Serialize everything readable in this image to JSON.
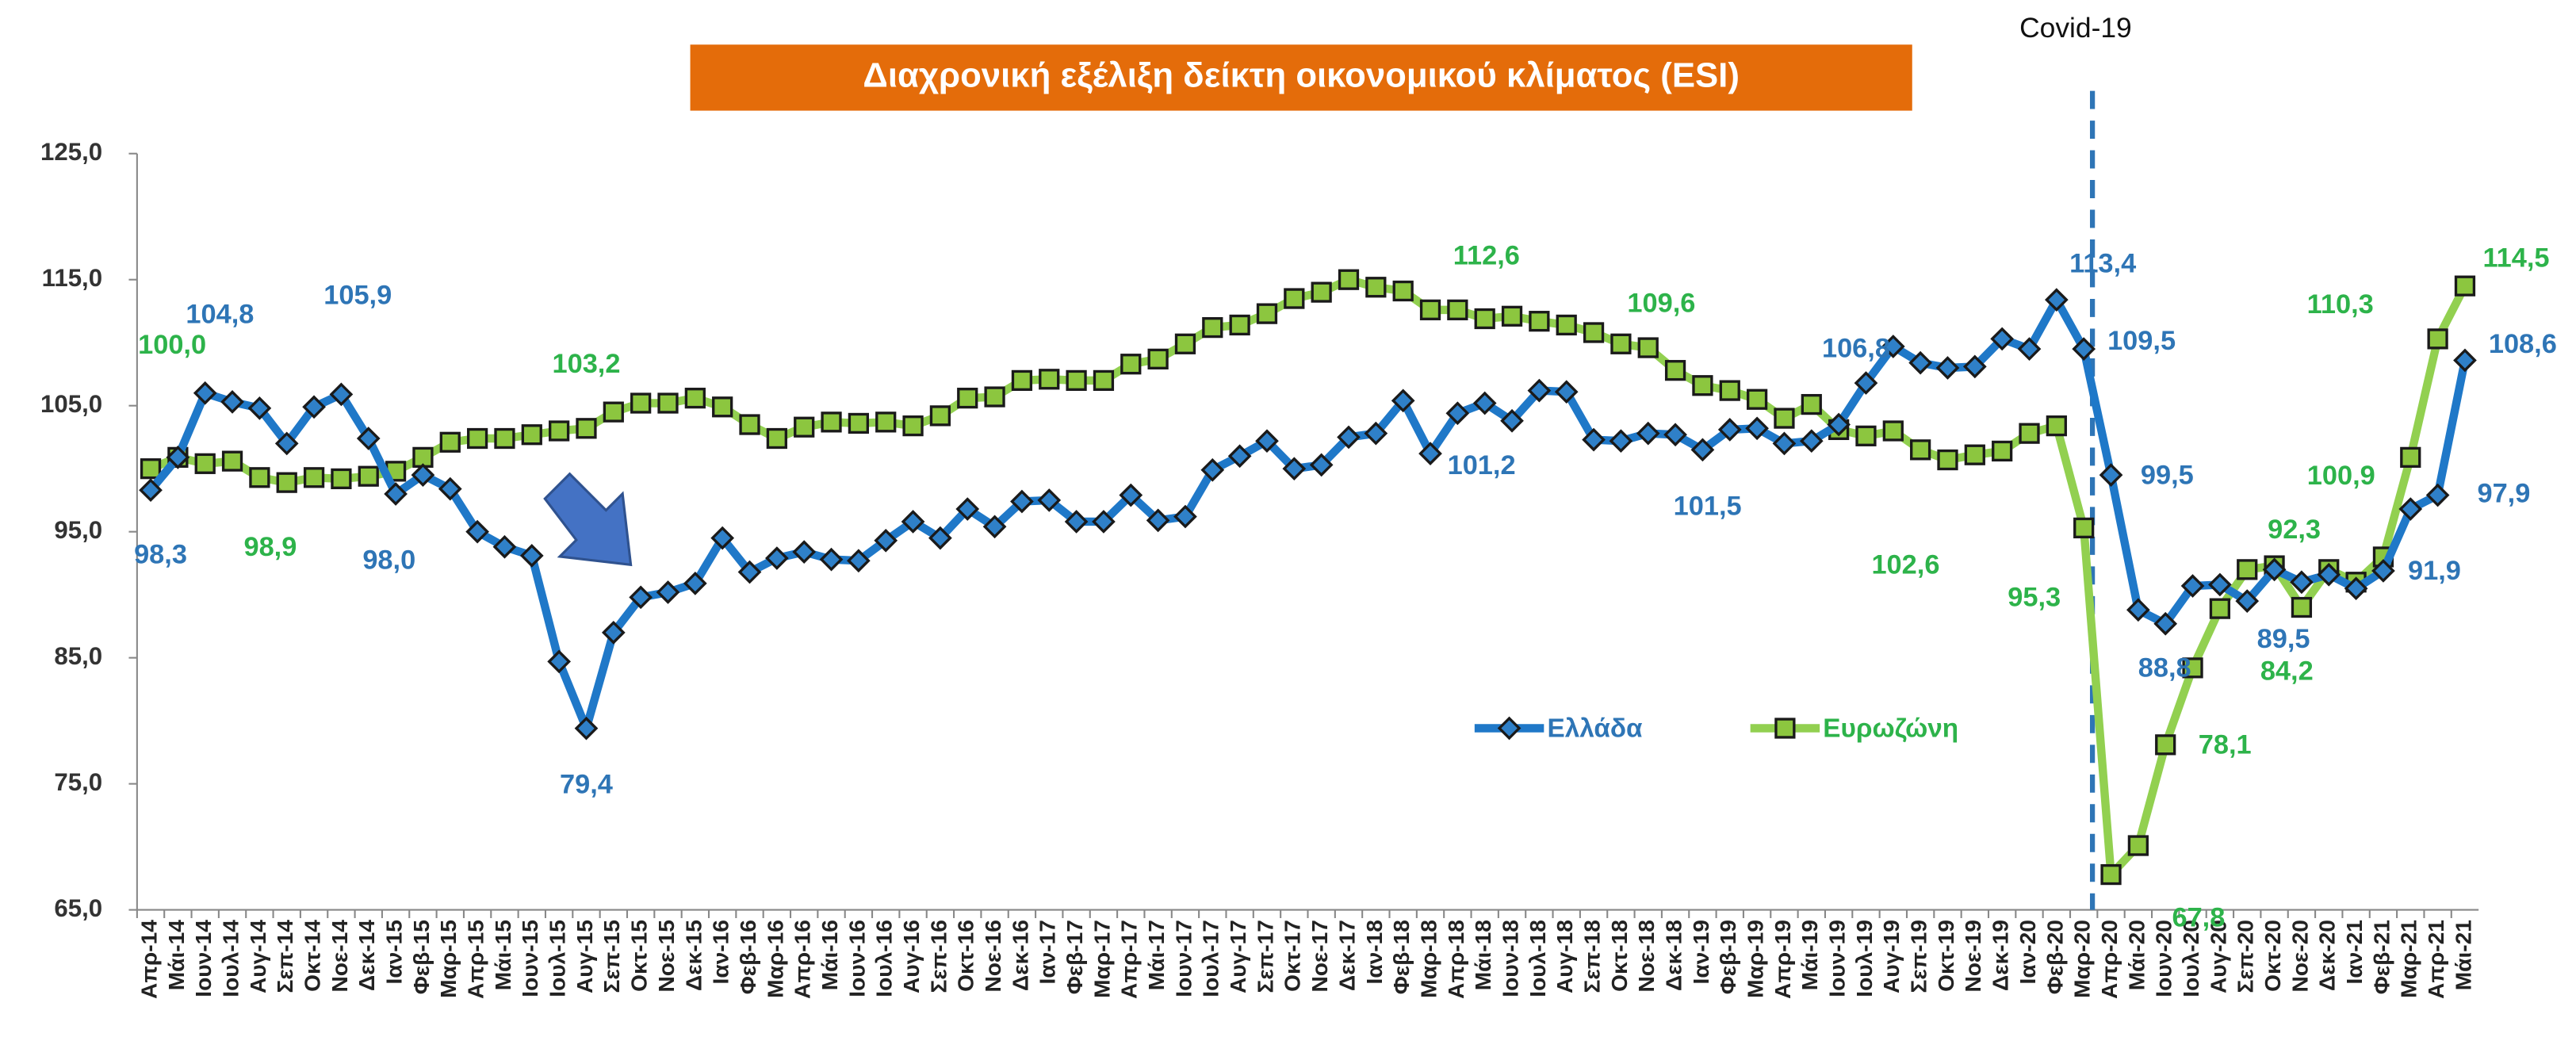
{
  "chart_data": {
    "type": "line",
    "title": "Διαχρονική εξέλιξη δείκτη οικονομικού κλίματος (ESI)",
    "annotations": [
      {
        "text": "Covid-19"
      }
    ],
    "categories": [
      "Απρ-14",
      "Μάι-14",
      "Ιουν-14",
      "Ιουλ-14",
      "Αυγ-14",
      "Σεπ-14",
      "Οκτ-14",
      "Νοε-14",
      "Δεκ-14",
      "Ιαν-15",
      "Φεβ-15",
      "Μαρ-15",
      "Απρ-15",
      "Μάι-15",
      "Ιουν-15",
      "Ιουλ-15",
      "Αυγ-15",
      "Σεπ-15",
      "Οκτ-15",
      "Νοε-15",
      "Δεκ-15",
      "Ιαν-16",
      "Φεβ-16",
      "Μαρ-16",
      "Απρ-16",
      "Μάι-16",
      "Ιουν-16",
      "Ιουλ-16",
      "Αυγ-16",
      "Σεπ-16",
      "Οκτ-16",
      "Νοε-16",
      "Δεκ-16",
      "Ιαν-17",
      "Φεβ-17",
      "Μαρ-17",
      "Απρ-17",
      "Μάι-17",
      "Ιουν-17",
      "Ιουλ-17",
      "Αυγ-17",
      "Σεπ-17",
      "Οκτ-17",
      "Νοε-17",
      "Δεκ-17",
      "Ιαν-18",
      "Φεβ-18",
      "Μαρ-18",
      "Απρ-18",
      "Μάι-18",
      "Ιουν-18",
      "Ιουλ-18",
      "Αυγ-18",
      "Σεπ-18",
      "Οκτ-18",
      "Νοε-18",
      "Δεκ-18",
      "Ιαν-19",
      "Φεβ-19",
      "Μαρ-19",
      "Απρ-19",
      "Μάι-19",
      "Ιουν-19",
      "Ιουλ-19",
      "Αυγ-19",
      "Σεπ-19",
      "Οκτ-19",
      "Νοε-19",
      "Δεκ-19",
      "Ιαν-20",
      "Φεβ-20",
      "Μαρ-20",
      "Απρ-20",
      "Μάι-20",
      "Ιουν-20",
      "Ιουλ-20",
      "Αυγ-20",
      "Σεπ-20",
      "Οκτ-20",
      "Νοε-20",
      "Δεκ-20",
      "Ιαν-21",
      "Φεβ-21",
      "Μαρ-21",
      "Απρ-21",
      "Μάι-21"
    ],
    "series": [
      {
        "name": "Ελλάδα",
        "color": "#1f78c8",
        "marker": "diamond",
        "marker_color": "#2f80c8",
        "label_color": "#2e75b6",
        "values": [
          98.3,
          100.9,
          106.0,
          105.3,
          104.8,
          102.0,
          104.9,
          105.9,
          102.4,
          98.0,
          99.5,
          98.4,
          95.0,
          93.8,
          93.1,
          84.7,
          79.4,
          87.0,
          89.8,
          90.2,
          90.9,
          94.5,
          91.8,
          92.9,
          93.4,
          92.8,
          92.7,
          94.3,
          95.8,
          94.5,
          96.8,
          95.4,
          97.4,
          97.5,
          95.8,
          95.8,
          97.9,
          95.9,
          96.2,
          99.9,
          101.0,
          102.2,
          100.0,
          100.3,
          102.5,
          102.8,
          105.4,
          101.2,
          104.4,
          105.2,
          103.8,
          106.2,
          106.1,
          102.3,
          102.2,
          102.8,
          102.7,
          101.5,
          103.1,
          103.2,
          102.0,
          102.2,
          103.5,
          106.8,
          109.7,
          108.4,
          108.0,
          108.1,
          110.3,
          109.5,
          113.4,
          109.5,
          99.5,
          88.8,
          87.7,
          90.7,
          90.8,
          89.5,
          92.0,
          91.0,
          91.6,
          90.5,
          91.9,
          96.8,
          97.9,
          108.6
        ],
        "value_labels": [
          "98,3",
          null,
          null,
          null,
          "104,8",
          null,
          null,
          "105,9",
          null,
          "98,0",
          null,
          null,
          null,
          null,
          null,
          null,
          "79,4",
          null,
          null,
          null,
          null,
          null,
          null,
          null,
          null,
          null,
          null,
          null,
          null,
          null,
          null,
          null,
          null,
          null,
          null,
          null,
          null,
          null,
          null,
          null,
          null,
          null,
          null,
          null,
          null,
          null,
          null,
          "101,2",
          null,
          null,
          null,
          null,
          null,
          null,
          null,
          null,
          null,
          "101,5",
          null,
          null,
          null,
          null,
          null,
          "106,8",
          null,
          null,
          null,
          null,
          null,
          null,
          "113,4",
          "109,5",
          "99,5",
          "88,8",
          null,
          null,
          null,
          "89,5",
          null,
          null,
          null,
          null,
          "91,9",
          null,
          "97,9",
          "108,6"
        ]
      },
      {
        "name": "Ευρωζώνη",
        "color": "#92d050",
        "marker": "square",
        "marker_color": "#8cc63f",
        "label_color": "#2db34a",
        "values": [
          100.0,
          100.9,
          100.4,
          100.6,
          99.3,
          98.9,
          99.3,
          99.2,
          99.4,
          99.8,
          100.9,
          102.1,
          102.4,
          102.4,
          102.7,
          103.0,
          103.2,
          104.5,
          105.2,
          105.2,
          105.6,
          104.9,
          103.5,
          102.4,
          103.3,
          103.7,
          103.6,
          103.7,
          103.4,
          104.2,
          105.6,
          105.7,
          107.0,
          107.1,
          107.0,
          107.0,
          108.3,
          108.7,
          109.9,
          111.2,
          111.4,
          112.3,
          113.5,
          114.0,
          115.0,
          114.4,
          114.1,
          112.6,
          112.6,
          111.9,
          112.1,
          111.7,
          111.4,
          110.8,
          109.9,
          109.6,
          107.8,
          106.6,
          106.2,
          105.5,
          104.0,
          105.1,
          103.1,
          102.6,
          103.0,
          101.5,
          100.7,
          101.1,
          101.4,
          102.8,
          103.4,
          95.3,
          67.8,
          70.1,
          78.1,
          84.2,
          88.9,
          92.0,
          92.3,
          89.0,
          92.0,
          91.0,
          93.0,
          100.9,
          110.3,
          114.5
        ],
        "value_labels": [
          "100,0",
          null,
          null,
          null,
          null,
          "98,9",
          null,
          null,
          null,
          null,
          null,
          null,
          null,
          null,
          null,
          null,
          "103,2",
          null,
          null,
          null,
          null,
          null,
          null,
          null,
          null,
          null,
          null,
          null,
          null,
          null,
          null,
          null,
          null,
          null,
          null,
          null,
          null,
          null,
          null,
          null,
          null,
          null,
          null,
          null,
          null,
          null,
          null,
          "112,6",
          null,
          null,
          null,
          null,
          null,
          null,
          null,
          "109,6",
          null,
          null,
          null,
          null,
          null,
          null,
          null,
          "102,6",
          null,
          null,
          null,
          null,
          null,
          null,
          null,
          "95,3",
          "67,8",
          null,
          "78,1",
          "84,2",
          null,
          null,
          "92,3",
          null,
          null,
          null,
          null,
          "100,9",
          "110,3",
          "114,5"
        ]
      }
    ],
    "ylim": [
      65,
      125
    ],
    "yticks": [
      {
        "value": 65,
        "label": "65,0"
      },
      {
        "value": 75,
        "label": "75,0"
      },
      {
        "value": 85,
        "label": "85,0"
      },
      {
        "value": 95,
        "label": "95,0"
      },
      {
        "value": 105,
        "label": "105,0"
      },
      {
        "value": 115,
        "label": "115,0"
      },
      {
        "value": 125,
        "label": "125,0"
      }
    ],
    "grid": false
  }
}
